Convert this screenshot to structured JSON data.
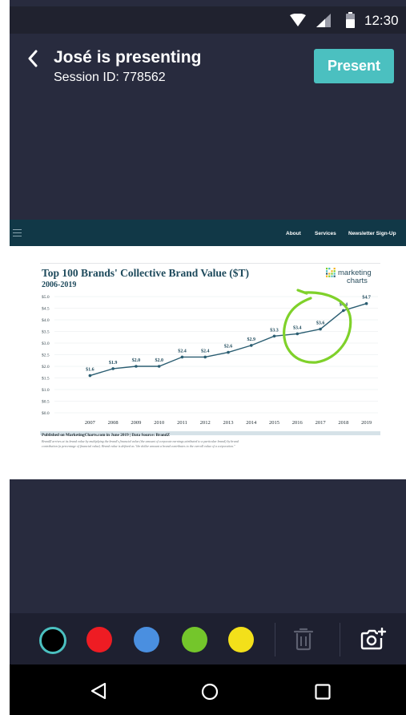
{
  "status_bar": {
    "time": "12:30"
  },
  "header": {
    "title": "José is presenting",
    "session_id": "Session ID: 778562",
    "present_label": "Present"
  },
  "website": {
    "nav_items": [
      "About",
      "Services",
      "Newsletter Sign-Up"
    ]
  },
  "chart_data": {
    "type": "line",
    "title": "Top 100 Brands' Collective Brand Value ($T)",
    "subtitle": "2006-2019",
    "logo_text": [
      "marketing",
      "charts"
    ],
    "x": [
      "2007",
      "2008",
      "2009",
      "2010",
      "2011",
      "2012",
      "2013",
      "2014",
      "2015",
      "2016",
      "2017",
      "2018",
      "2019"
    ],
    "values": [
      1.6,
      1.9,
      2.0,
      2.0,
      2.4,
      2.4,
      2.6,
      2.9,
      3.3,
      3.4,
      3.6,
      4.4,
      4.7
    ],
    "data_labels": [
      "$1.6",
      "$1.9",
      "$2.0",
      "$2.0",
      "$2.4",
      "$2.4",
      "$2.6",
      "$2.9",
      "$3.3",
      "$3.4",
      "$3.6",
      "$4.4",
      "$4.7"
    ],
    "y_ticks": [
      "$0.0",
      "$0.5",
      "$1.0",
      "$1.5",
      "$2.0",
      "$2.5",
      "$3.0",
      "$3.5",
      "$4.0",
      "$4.5",
      "$5.0"
    ],
    "ylim": [
      0,
      5
    ],
    "grid": true,
    "footer_source": "Published on MarketingCharts.com in June 2019 | Data Source: BrandZ",
    "footer_note_1": "BrandZ arrives at its brand value by multiplying the brand's financial value (the amount of corporate earnings attributed to a particular brand) by brand",
    "footer_note_2": "contribution (a percentage of financial value). Brand value is defined as \"the dollar amount a brand contributes to the overall value of a corporation.\"",
    "line_color": "#2b5e72",
    "annotation_color": "#7fd12a"
  },
  "toolbar": {
    "colors": [
      {
        "name": "black",
        "hex": "#000000"
      },
      {
        "name": "red",
        "hex": "#ee1c23"
      },
      {
        "name": "blue",
        "hex": "#4a8fe0"
      },
      {
        "name": "green",
        "hex": "#74c62b"
      },
      {
        "name": "yellow",
        "hex": "#f3e01a"
      }
    ],
    "selected_color": "black",
    "icons": [
      "trash-icon",
      "camera-add-icon"
    ]
  },
  "navigation_bar": {
    "icons": [
      "back-triangle-icon",
      "home-circle-icon",
      "recents-square-icon"
    ]
  }
}
